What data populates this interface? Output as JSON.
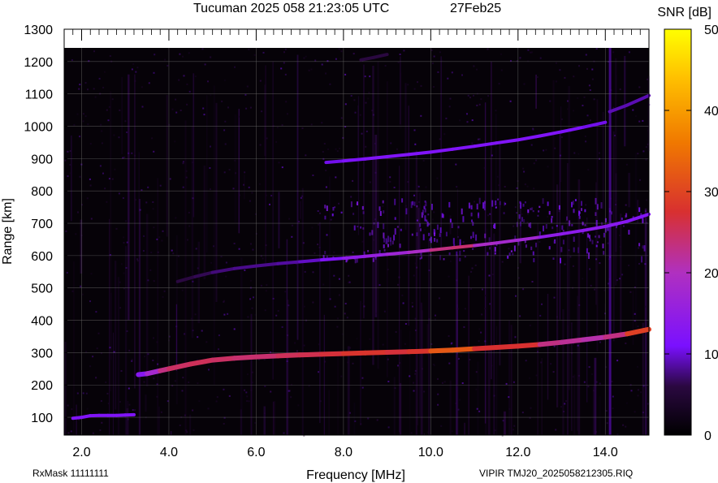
{
  "header": {
    "title": "Tucuman 2025 058 21:23:05 UTC",
    "date": "27Feb25"
  },
  "footer": {
    "rxmask": "RxMask 11111111",
    "filename": "VIPIR  TMJ20_2025058212305.RIQ"
  },
  "chart_data": {
    "type": "heatmap",
    "title": "Tucuman 2025 058 21:23:05 UTC",
    "xlabel": "Frequency [MHz]",
    "ylabel": "Range [km]",
    "xlim": [
      1.6,
      15.0
    ],
    "ylim": [
      45,
      1300
    ],
    "x_ticks": [
      2.0,
      4.0,
      6.0,
      8.0,
      10.0,
      12.0,
      14.0
    ],
    "x_tick_labels": [
      "2.0",
      "4.0",
      "6.0",
      "8.0",
      "10.0",
      "12.0",
      "14.0"
    ],
    "y_ticks": [
      100,
      200,
      300,
      400,
      500,
      600,
      700,
      800,
      900,
      1000,
      1100,
      1200,
      1300
    ],
    "grid": true,
    "colorbar": {
      "label": "SNR [dB]",
      "range": [
        0,
        50
      ],
      "ticks": [
        0,
        10,
        20,
        30,
        40,
        50
      ],
      "colors": [
        "#000000",
        "#3a0a5c",
        "#7a10ff",
        "#c03080",
        "#e05010",
        "#f08a00",
        "#ffd000",
        "#ffff00"
      ]
    },
    "series": [
      {
        "name": "",
        "x": [
          1.8,
          2.0,
          2.2,
          2.4,
          2.6,
          2.8,
          3.0,
          3.2
        ],
        "y": [
          97,
          100,
          105,
          106,
          106,
          106,
          107,
          108
        ],
        "snr": [
          12,
          12,
          12,
          12,
          12,
          12,
          12,
          12
        ]
      },
      {
        "name": "",
        "x": [
          3.3,
          3.5,
          3.8,
          4.0,
          4.5,
          5.0,
          5.5,
          6.0,
          6.5,
          7.0,
          7.5,
          8.0,
          8.5,
          9.0,
          9.5,
          10.0,
          10.5,
          11.0,
          11.5,
          12.0,
          12.5,
          13.0,
          13.5,
          14.0,
          14.5,
          15.0
        ],
        "y": [
          232,
          235,
          244,
          250,
          265,
          277,
          283,
          287,
          290,
          293,
          295,
          297,
          299,
          301,
          303,
          305,
          308,
          312,
          316,
          320,
          325,
          332,
          340,
          348,
          358,
          372
        ],
        "snr": [
          12,
          14,
          22,
          24,
          25,
          25,
          24,
          24,
          24,
          26,
          25,
          28,
          27,
          28,
          25,
          30,
          34,
          30,
          24,
          30,
          24,
          22,
          22,
          20,
          26,
          32
        ]
      },
      {
        "name": "",
        "x": [
          4.2,
          4.6,
          5.0,
          5.5,
          6.0,
          6.5,
          7.0,
          7.5,
          8.0,
          8.5,
          9.0,
          9.5,
          10.0,
          10.5,
          11.0,
          11.5,
          12.0,
          12.5,
          13.0,
          13.5,
          14.0,
          14.5,
          15.0
        ],
        "y": [
          520,
          535,
          548,
          560,
          568,
          575,
          581,
          587,
          592,
          598,
          604,
          610,
          617,
          624,
          631,
          639,
          648,
          657,
          667,
          678,
          690,
          706,
          728
        ],
        "snr": [
          6,
          6,
          7,
          8,
          8,
          8,
          9,
          10,
          14,
          15,
          16,
          18,
          20,
          26,
          22,
          16,
          20,
          15,
          14,
          14,
          14,
          13,
          12
        ]
      },
      {
        "name": "",
        "x": [
          7.6,
          8.0,
          8.5,
          9.0,
          9.5,
          10.0,
          10.5,
          11.0,
          11.5,
          12.0,
          12.5,
          13.0,
          13.5,
          14.0
        ],
        "y": [
          888,
          893,
          899,
          906,
          913,
          920,
          929,
          938,
          948,
          958,
          970,
          983,
          997,
          1012
        ],
        "snr": [
          10,
          11,
          12,
          12,
          12,
          12,
          12,
          12,
          12,
          12,
          12,
          12,
          11,
          10
        ]
      },
      {
        "name": "",
        "x": [
          14.1,
          14.5,
          15.0
        ],
        "y": [
          1045,
          1065,
          1095
        ],
        "snr": [
          9,
          9,
          9
        ]
      },
      {
        "name": "",
        "x": [
          8.4,
          8.7,
          9.0
        ],
        "y": [
          1205,
          1213,
          1222
        ],
        "snr": [
          6,
          6,
          6
        ]
      }
    ]
  }
}
